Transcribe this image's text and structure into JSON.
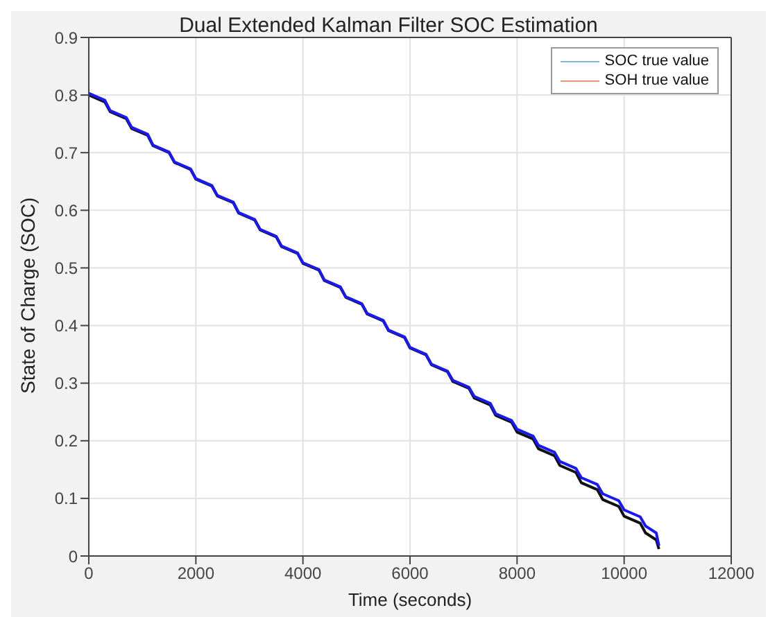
{
  "chart_data": {
    "type": "line",
    "title": "Dual Extended Kalman Filter SOC Estimation",
    "xlabel": "Time (seconds)",
    "ylabel": "State of Charge (SOC)",
    "xlim": [
      0,
      12000
    ],
    "xticks": [
      0,
      2000,
      4000,
      6000,
      8000,
      10000,
      12000
    ],
    "ylim": [
      0,
      0.9
    ],
    "yticks": [
      0,
      0.1,
      0.2,
      0.3,
      0.4,
      0.5,
      0.6,
      0.7,
      0.8,
      0.9
    ],
    "grid": true,
    "legend": "top right",
    "series": [
      {
        "name": "SOC true value",
        "color": "#7ab8d6"
      },
      {
        "name": "SOH true value",
        "color": "#e8977a"
      },
      {
        "color": "#111111",
        "x": [
          0,
          300,
          400,
          700,
          800,
          1100,
          1200,
          1500,
          1600,
          1900,
          2000,
          2300,
          2400,
          2700,
          2800,
          3100,
          3200,
          3500,
          3600,
          3900,
          4000,
          4300,
          4400,
          4700,
          4800,
          5100,
          5200,
          5500,
          5600,
          5900,
          6000,
          6300,
          6400,
          6700,
          6800,
          7100,
          7200,
          7500,
          7600,
          7900,
          8000,
          8300,
          8400,
          8700,
          8800,
          9100,
          9200,
          9500,
          9600,
          9900,
          10000,
          10300,
          10400,
          10600,
          10650
        ],
        "values": [
          0.8,
          0.788,
          0.771,
          0.759,
          0.742,
          0.73,
          0.712,
          0.7,
          0.683,
          0.671,
          0.654,
          0.642,
          0.625,
          0.613,
          0.595,
          0.583,
          0.566,
          0.554,
          0.537,
          0.525,
          0.508,
          0.496,
          0.478,
          0.466,
          0.449,
          0.437,
          0.42,
          0.408,
          0.391,
          0.379,
          0.361,
          0.349,
          0.332,
          0.32,
          0.303,
          0.291,
          0.274,
          0.262,
          0.244,
          0.232,
          0.215,
          0.203,
          0.186,
          0.174,
          0.157,
          0.145,
          0.127,
          0.115,
          0.098,
          0.086,
          0.069,
          0.057,
          0.04,
          0.028,
          0.012
        ]
      },
      {
        "color": "#1a1aee",
        "x": [
          0,
          300,
          400,
          700,
          800,
          1100,
          1200,
          1500,
          1600,
          1900,
          2000,
          2300,
          2400,
          2700,
          2800,
          3100,
          3200,
          3500,
          3600,
          3900,
          4000,
          4300,
          4400,
          4700,
          4800,
          5100,
          5200,
          5500,
          5600,
          5900,
          6000,
          6300,
          6400,
          6700,
          6800,
          7100,
          7200,
          7500,
          7600,
          7900,
          8000,
          8300,
          8400,
          8700,
          8800,
          9100,
          9200,
          9500,
          9600,
          9900,
          10000,
          10300,
          10400,
          10600,
          10650
        ],
        "values": [
          0.803,
          0.791,
          0.773,
          0.761,
          0.744,
          0.732,
          0.713,
          0.701,
          0.684,
          0.672,
          0.655,
          0.643,
          0.626,
          0.614,
          0.596,
          0.584,
          0.567,
          0.555,
          0.538,
          0.526,
          0.509,
          0.497,
          0.479,
          0.467,
          0.45,
          0.438,
          0.421,
          0.409,
          0.392,
          0.38,
          0.362,
          0.35,
          0.333,
          0.321,
          0.305,
          0.293,
          0.277,
          0.265,
          0.247,
          0.235,
          0.22,
          0.208,
          0.192,
          0.18,
          0.164,
          0.152,
          0.136,
          0.124,
          0.108,
          0.096,
          0.08,
          0.068,
          0.052,
          0.04,
          0.018
        ]
      }
    ]
  }
}
